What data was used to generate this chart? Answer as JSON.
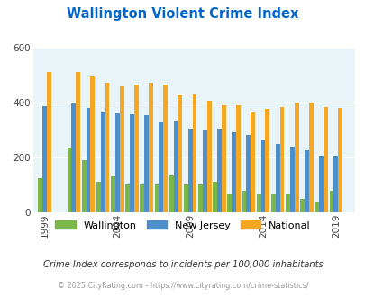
{
  "title": "Wallington Violent Crime Index",
  "plot_years": [
    1999,
    2001,
    2002,
    2003,
    2004,
    2005,
    2006,
    2007,
    2008,
    2009,
    2010,
    2011,
    2012,
    2013,
    2014,
    2015,
    2016,
    2017,
    2018,
    2019
  ],
  "wallington_vals": [
    125,
    235,
    190,
    110,
    130,
    100,
    100,
    100,
    135,
    100,
    100,
    110,
    65,
    80,
    65,
    65,
    65,
    50,
    40,
    80
  ],
  "nj_vals": [
    385,
    395,
    380,
    365,
    360,
    358,
    355,
    328,
    330,
    305,
    300,
    305,
    293,
    280,
    262,
    248,
    238,
    225,
    207,
    207
  ],
  "national_vals": [
    510,
    510,
    495,
    470,
    460,
    465,
    470,
    465,
    425,
    430,
    405,
    390,
    390,
    365,
    375,
    383,
    400,
    398,
    383,
    380
  ],
  "wallington_color": "#7ab648",
  "nj_color": "#4d8fcc",
  "national_color": "#f5a623",
  "bg_color": "#e8f4f8",
  "title_color": "#0066cc",
  "subtitle": "Crime Index corresponds to incidents per 100,000 inhabitants",
  "footer": "© 2025 CityRating.com - https://www.cityrating.com/crime-statistics/",
  "ylim": [
    0,
    600
  ],
  "yticks": [
    0,
    200,
    400,
    600
  ],
  "xlabel_years": [
    1999,
    2004,
    2009,
    2014,
    2019
  ],
  "xlim_left": 1998.2,
  "xlim_right": 2020.3
}
